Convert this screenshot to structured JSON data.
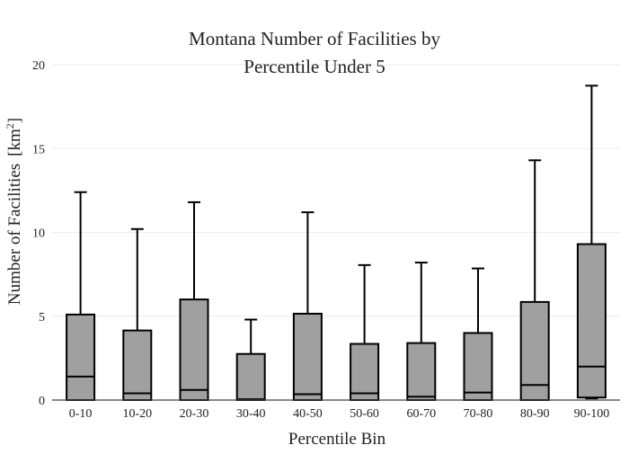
{
  "chart_data": {
    "type": "box",
    "title_lines": [
      "Montana Number of Facilities by",
      "Percentile Under 5"
    ],
    "xlabel": "Percentile Bin",
    "ylabel": "Number of Facilities",
    "ylabel_unit_base": "[km",
    "ylabel_unit_sup": "2",
    "ylabel_unit_close": "]",
    "ylim": [
      0,
      20
    ],
    "yticks": [
      0,
      5,
      10,
      15,
      20
    ],
    "grid": true,
    "legend": "none",
    "box_color": "#a0a0a0",
    "edge_color": "#000000",
    "categories": [
      "0-10",
      "10-20",
      "20-30",
      "30-40",
      "40-50",
      "50-60",
      "60-70",
      "70-80",
      "80-90",
      "90-100"
    ],
    "boxes": [
      {
        "whisker_low": 0,
        "q1": 0,
        "median": 1.4,
        "q3": 5.1,
        "whisker_high": 12.4
      },
      {
        "whisker_low": 0,
        "q1": 0,
        "median": 0.4,
        "q3": 4.15,
        "whisker_high": 10.2
      },
      {
        "whisker_low": 0,
        "q1": 0,
        "median": 0.6,
        "q3": 6.0,
        "whisker_high": 11.8
      },
      {
        "whisker_low": 0,
        "q1": 0,
        "median": 0.05,
        "q3": 2.75,
        "whisker_high": 4.8
      },
      {
        "whisker_low": 0,
        "q1": 0,
        "median": 0.35,
        "q3": 5.15,
        "whisker_high": 11.2
      },
      {
        "whisker_low": 0,
        "q1": 0,
        "median": 0.4,
        "q3": 3.35,
        "whisker_high": 8.05
      },
      {
        "whisker_low": 0,
        "q1": 0,
        "median": 0.2,
        "q3": 3.4,
        "whisker_high": 8.2
      },
      {
        "whisker_low": 0,
        "q1": 0,
        "median": 0.45,
        "q3": 4.0,
        "whisker_high": 7.85
      },
      {
        "whisker_low": 0,
        "q1": 0,
        "median": 0.9,
        "q3": 5.85,
        "whisker_high": 14.3
      },
      {
        "whisker_low": 0.1,
        "q1": 0.15,
        "median": 2.0,
        "q3": 9.3,
        "whisker_high": 18.75
      }
    ]
  }
}
